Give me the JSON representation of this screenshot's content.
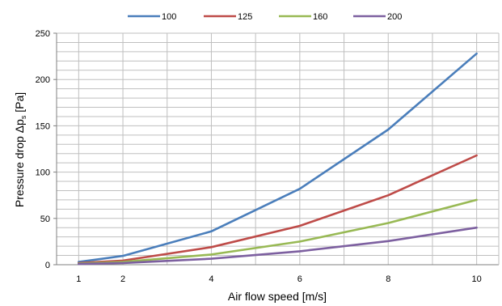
{
  "chart_data": {
    "type": "line",
    "title": "",
    "xlabel": "Air flow speed [m/s]",
    "ylabel_main": "Pressure drop Δp",
    "ylabel_sub": "s",
    "ylabel_unit": " [Pa]",
    "x": [
      1,
      2,
      4,
      6,
      8,
      10
    ],
    "xticks": [
      "1",
      "2",
      "4",
      "6",
      "8",
      "10"
    ],
    "yticks": [
      0,
      50,
      100,
      150,
      200,
      250
    ],
    "ylim": [
      0,
      250
    ],
    "grid": true,
    "legend_position": "top",
    "series": [
      {
        "name": "100",
        "color": "#4a7ebb",
        "values": [
          3,
          9.5,
          36,
          82,
          146,
          228
        ]
      },
      {
        "name": "125",
        "color": "#be4b48",
        "values": [
          1.8,
          4.5,
          19,
          42,
          75,
          118
        ]
      },
      {
        "name": "160",
        "color": "#98b954",
        "values": [
          1.2,
          3,
          11,
          25,
          45,
          70
        ]
      },
      {
        "name": "200",
        "color": "#7d60a0",
        "values": [
          0.8,
          1.8,
          6.5,
          14.5,
          25.5,
          40
        ]
      }
    ]
  }
}
